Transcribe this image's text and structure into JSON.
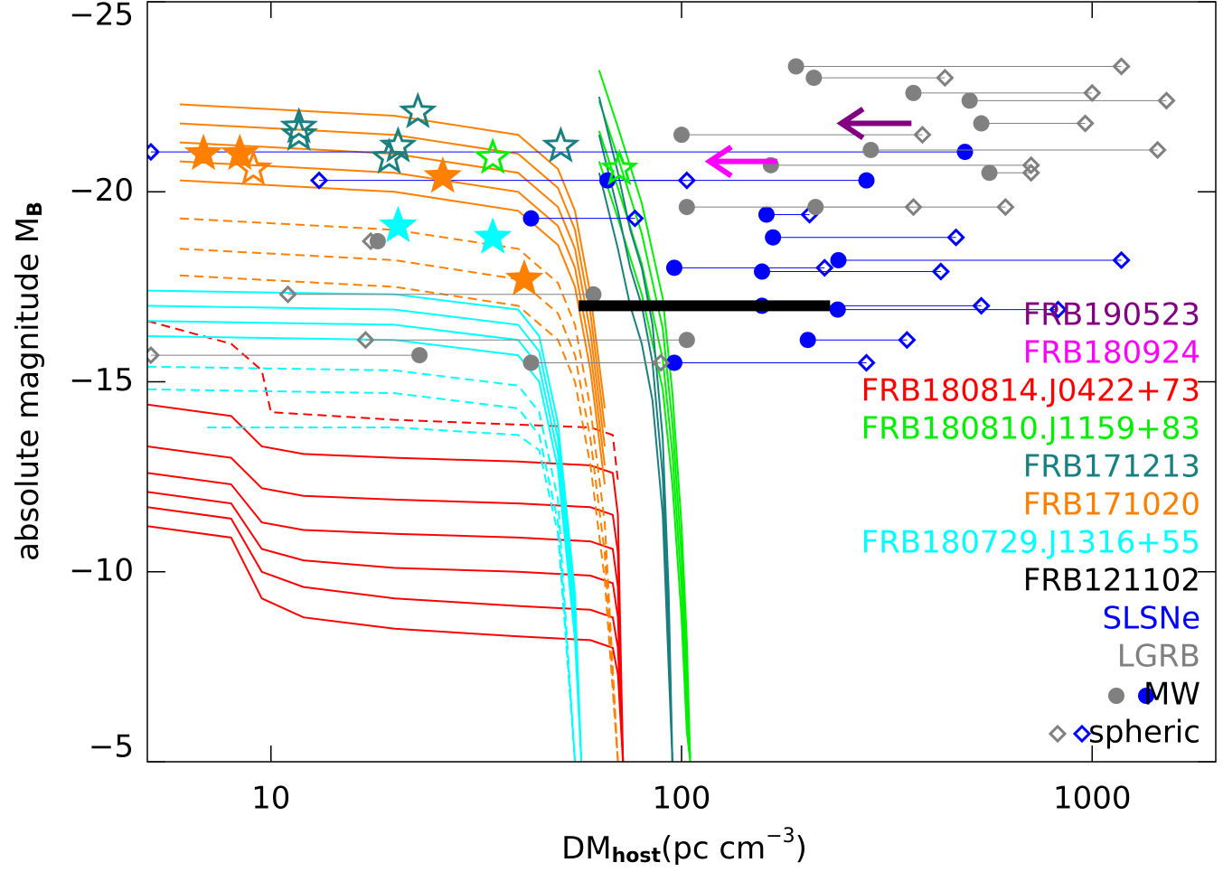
{
  "chart_data": {
    "type": "line",
    "x_label": {
      "main": "DM",
      "sub": "host",
      "unit": "(pc cm",
      "sup": "−3",
      "close": ")"
    },
    "y_label": {
      "main": "absolute magnitude M",
      "sub": "B"
    },
    "log_x": true,
    "xlim": [
      5,
      2000
    ],
    "ylim": [
      -5,
      -25
    ],
    "xticks": [
      10,
      100,
      1000
    ],
    "yticks": [
      {
        "value": -25,
        "label": "−25"
      },
      {
        "value": -20,
        "label": "−20"
      },
      {
        "value": -15,
        "label": "−15"
      },
      {
        "value": -10,
        "label": "−10"
      },
      {
        "value": -5,
        "label": "−5"
      }
    ],
    "series": [
      {
        "name": "FRB190523",
        "color": "#800080",
        "arrow": {
          "x": [
            363,
            245
          ],
          "values": [
            -21.8
          ]
        }
      },
      {
        "name": "FRB180924",
        "color": "#ff00ff",
        "arrow": {
          "x": [
            171,
            117
          ],
          "values": [
            -20.8
          ]
        }
      },
      {
        "name": "FRB180814.J0422+73",
        "color": "#ff0000",
        "curves": [
          {
            "x": [
              5,
              8,
              9.5,
              12,
              20,
              40,
              60,
              68,
              70,
              72
            ],
            "values": [
              -14.4,
              -14.1,
              -13.3,
              -13.1,
              -13.0,
              -12.9,
              -12.8,
              -12.6,
              -11.5,
              -5
            ]
          },
          {
            "x": [
              5,
              8,
              9.5,
              12,
              20,
              40,
              60,
              68,
              70,
              72
            ],
            "values": [
              -13.3,
              -13.0,
              -12.2,
              -12.0,
              -11.9,
              -11.8,
              -11.7,
              -11.5,
              -10.5,
              -5
            ]
          },
          {
            "x": [
              5,
              8,
              9.5,
              12,
              20,
              40,
              60,
              68,
              70,
              72
            ],
            "values": [
              -12.6,
              -12.3,
              -11.3,
              -11.1,
              -11.0,
              -10.9,
              -10.8,
              -10.6,
              -9.6,
              -5
            ]
          },
          {
            "x": [
              5,
              8,
              9.5,
              12,
              20,
              40,
              60,
              68,
              70,
              72
            ],
            "values": [
              -12.1,
              -11.8,
              -10.6,
              -10.3,
              -10.1,
              -10.0,
              -9.9,
              -9.7,
              -8.8,
              -5
            ]
          },
          {
            "x": [
              5,
              8,
              9.5,
              12,
              20,
              40,
              60,
              68,
              70,
              72
            ],
            "values": [
              -11.7,
              -11.4,
              -10.0,
              -9.6,
              -9.3,
              -9.1,
              -9.0,
              -8.8,
              -8.0,
              -5
            ]
          },
          {
            "x": [
              5,
              8,
              9.5,
              12,
              20,
              40,
              60,
              68,
              70,
              72
            ],
            "values": [
              -11.2,
              -10.9,
              -9.3,
              -8.8,
              -8.5,
              -8.3,
              -8.2,
              -8.0,
              -7.3,
              -5
            ]
          },
          {
            "x": [
              5,
              8,
              9.5,
              10,
              20,
              60,
              68,
              70
            ],
            "values": [
              -16.6,
              -16.0,
              -15.3,
              -14.2,
              -14.0,
              -13.8,
              -13.6,
              -12.4
            ],
            "dashed": true
          }
        ]
      },
      {
        "name": "FRB180810.J1159+83",
        "color": "#00ee00",
        "curves": [
          {
            "x": [
              63,
              70,
              80,
              90,
              95,
              100,
              103,
              105
            ],
            "values": [
              -23.2,
              -21.7,
              -19.7,
              -17.2,
              -14.7,
              -11.2,
              -8.2,
              -5
            ]
          },
          {
            "x": [
              63,
              70,
              80,
              90,
              95,
              100,
              103,
              105
            ],
            "values": [
              -22.4,
              -20.9,
              -18.9,
              -16.4,
              -13.9,
              -10.4,
              -7.4,
              -5
            ]
          },
          {
            "x": [
              63,
              70,
              80,
              90,
              95,
              100,
              103,
              105
            ],
            "values": [
              -21.6,
              -20.1,
              -18.1,
              -15.6,
              -13.1,
              -9.6,
              -6.6,
              -5
            ]
          },
          {
            "x": [
              63,
              70,
              80,
              90,
              95,
              100,
              103,
              105
            ],
            "values": [
              -20.8,
              -19.3,
              -17.3,
              -14.8,
              -12.3,
              -8.8,
              -5.8,
              -5
            ]
          }
        ],
        "stars_open": {
          "x": [
            34.7,
            70.6
          ],
          "values": [
            -20.9,
            -20.6
          ]
        }
      },
      {
        "name": "FRB171213",
        "color": "#1a7f7f",
        "curves": [
          {
            "x": [
              63,
              70,
              75,
              80,
              85,
              90,
              93,
              95
            ],
            "values": [
              -22.5,
              -20.5,
              -19,
              -18,
              -16.5,
              -13.5,
              -9.5,
              -5
            ]
          },
          {
            "x": [
              63,
              70,
              75,
              80,
              85,
              90,
              93,
              95
            ],
            "values": [
              -21.5,
              -19.5,
              -18,
              -17,
              -15.5,
              -12.5,
              -8.5,
              -5
            ]
          },
          {
            "x": [
              63,
              70,
              75,
              80,
              85,
              90,
              93,
              95
            ],
            "values": [
              -20.5,
              -18.5,
              -17,
              -16,
              -14.5,
              -11.5,
              -7.5,
              -5
            ]
          }
        ],
        "stars_open": {
          "x": [
            11.7,
            11.7,
            19.4,
            20.4,
            22.8,
            50.8
          ],
          "values": [
            -21.7,
            -21.5,
            -20.9,
            -21.2,
            -22.1,
            -21.2
          ]
        }
      },
      {
        "name": "FRB171020",
        "color": "#ff8000",
        "curves": [
          {
            "x": [
              6,
              20,
              40,
              50,
              55,
              60,
              65
            ],
            "values": [
              -22.3,
              -22.0,
              -21.5,
              -20.6,
              -19.5,
              -17.3,
              -14.3
            ]
          },
          {
            "x": [
              6,
              20,
              40,
              50,
              55,
              60,
              65
            ],
            "values": [
              -21.8,
              -21.5,
              -21.0,
              -20.1,
              -19.0,
              -16.8,
              -13.8
            ]
          },
          {
            "x": [
              6,
              20,
              40,
              50,
              55,
              60,
              65
            ],
            "values": [
              -21.3,
              -21.0,
              -20.5,
              -19.6,
              -18.5,
              -16.3,
              -13.3
            ]
          },
          {
            "x": [
              6,
              20,
              40,
              50,
              55,
              60,
              65
            ],
            "values": [
              -20.8,
              -20.5,
              -20.0,
              -19.1,
              -18.0,
              -15.8,
              -12.8
            ]
          },
          {
            "x": [
              6,
              20,
              40,
              50,
              55,
              60,
              65
            ],
            "values": [
              -20.3,
              -20.0,
              -19.5,
              -18.6,
              -17.5,
              -15.3,
              -12.3
            ]
          },
          {
            "x": [
              6,
              20,
              40,
              50,
              55,
              60,
              65,
              70
            ],
            "values": [
              -19.3,
              -19.0,
              -18.5,
              -17.6,
              -16.5,
              -14.3,
              -11.3,
              -5
            ],
            "dashed": true
          },
          {
            "x": [
              6,
              20,
              40,
              50,
              55,
              60,
              65,
              70
            ],
            "values": [
              -18.5,
              -18.2,
              -17.7,
              -16.8,
              -15.7,
              -13.5,
              -10.5,
              -5
            ],
            "dashed": true
          },
          {
            "x": [
              6,
              20,
              40,
              50,
              55,
              60,
              65,
              70
            ],
            "values": [
              -17.8,
              -17.5,
              -17.0,
              -16.1,
              -15.0,
              -12.8,
              -9.8,
              -5
            ],
            "dashed": true
          }
        ],
        "stars_filled": {
          "x": [
            6.85,
            8.4,
            26.2,
            41.4
          ],
          "values": [
            -21.0,
            -21.0,
            -20.4,
            -17.7
          ]
        },
        "stars_open": {
          "x": [
            9.06
          ],
          "values": [
            -20.6
          ]
        }
      },
      {
        "name": "FRB180729.J1316+55",
        "color": "#00ffff",
        "curves": [
          {
            "x": [
              5,
              20,
              40,
              45,
              50,
              55,
              57
            ],
            "values": [
              -17.4,
              -17.3,
              -16.9,
              -16.2,
              -13.9,
              -9.4,
              -5
            ]
          },
          {
            "x": [
              5,
              20,
              40,
              45,
              50,
              55,
              57
            ],
            "values": [
              -17.0,
              -16.9,
              -16.5,
              -15.8,
              -13.5,
              -9.0,
              -5
            ]
          },
          {
            "x": [
              5,
              20,
              40,
              45,
              50,
              55,
              57
            ],
            "values": [
              -16.6,
              -16.5,
              -16.1,
              -15.4,
              -13.1,
              -8.6,
              -5
            ]
          },
          {
            "x": [
              5,
              20,
              40,
              45,
              50,
              55,
              57
            ],
            "values": [
              -16.2,
              -16.1,
              -15.7,
              -15.0,
              -12.7,
              -8.2,
              -5
            ]
          },
          {
            "x": [
              5,
              20,
              40,
              45,
              50,
              55
            ],
            "values": [
              -15.4,
              -15.3,
              -14.9,
              -14.2,
              -11.9,
              -5
            ],
            "dashed": true
          },
          {
            "x": [
              5,
              20,
              40,
              45,
              50,
              55
            ],
            "values": [
              -14.8,
              -14.7,
              -14.3,
              -13.6,
              -11.3,
              -5
            ],
            "dashed": true
          },
          {
            "x": [
              7,
              20,
              40,
              45,
              50,
              55
            ],
            "values": [
              -13.8,
              -13.8,
              -13.6,
              -13.2,
              -11,
              -5
            ],
            "dashed": true
          }
        ],
        "stars_filled": {
          "x": [
            20.4,
            34.7
          ],
          "values": [
            -19.1,
            -18.8
          ]
        }
      },
      {
        "name": "FRB121102",
        "color": "#000000",
        "bar": {
          "x": [
            56.2,
            230
          ],
          "values": [
            -17.0
          ]
        }
      },
      {
        "name": "SLSNe",
        "color": "#0000ff",
        "points": {
          "x_mw": [
            490,
            282,
            66,
            43,
            161,
            167,
            241,
            96,
            157,
            157,
            240,
            203,
            96
          ],
          "x_spheric": [
            5.1,
            13.1,
            103,
            77,
            205,
            466,
            1178,
            223,
            428,
            537,
            826,
            354,
            282
          ],
          "values": [
            -21.05,
            -20.3,
            -20.3,
            -19.3,
            -19.4,
            -18.8,
            -18.2,
            -18.0,
            -17.9,
            -17.0,
            -16.9,
            -16.1,
            -15.5
          ]
        }
      },
      {
        "name": "LGRB",
        "color": "#808080",
        "points": {
          "x_mw": [
            190,
            210,
            367,
            503,
            537,
            100,
            289,
            165,
            562,
            212,
            103,
            61,
            23,
            43,
            103,
            18.2
          ],
          "x_spheric": [
            1178,
            438,
            1000,
            1517,
            962,
            386,
            1443,
            710,
            710,
            615,
            367,
            11,
            5.1,
            89,
            17,
            17.5
          ],
          "values": [
            -23.3,
            -23.0,
            -22.6,
            -22.4,
            -21.8,
            -21.5,
            -21.1,
            -20.7,
            -20.5,
            -19.6,
            -19.6,
            -17.3,
            -15.7,
            -15.5,
            -16.1,
            -18.7
          ]
        }
      }
    ],
    "marker_legend": {
      "mw": "MW",
      "spheric": "spheric"
    }
  }
}
